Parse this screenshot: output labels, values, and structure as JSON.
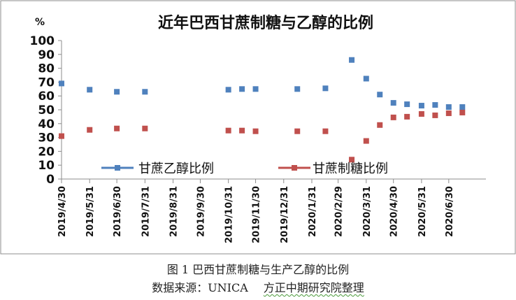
{
  "chart_data": {
    "type": "scatter",
    "title": "近年巴西甘蔗制糖与乙醇的比例",
    "ylabel": "%",
    "xlabel": "",
    "ylim": [
      0,
      100
    ],
    "yticks": [
      0,
      10,
      20,
      30,
      40,
      50,
      60,
      70,
      80,
      90,
      100
    ],
    "grid": false,
    "legend": "bottom-inside",
    "x_tick_labels": [
      "2019/4/30",
      "2019/5/31",
      "2019/6/30",
      "2019/7/31",
      "2019/8/31",
      "2019/9/30",
      "2019/10/31",
      "2019/11/30",
      "2019/12/31",
      "2020/1/31",
      "2020/2/29",
      "2020/3/31",
      "2020/4/30",
      "2020/5/31",
      "2020/6/30"
    ],
    "series": [
      {
        "name": "甘蔗乙醇比例",
        "color": "#4f81bd",
        "points": [
          {
            "x": "2019/4/30",
            "y": 69
          },
          {
            "x": "2019/5/31",
            "y": 64.5
          },
          {
            "x": "2019/6/30",
            "y": 63
          },
          {
            "x": "2019/7/31",
            "y": 63
          },
          {
            "x": "2019/10/31",
            "y": 64.5
          },
          {
            "x": "2019/11/15",
            "y": 65
          },
          {
            "x": "2019/11/30",
            "y": 65
          },
          {
            "x": "2020/1/15",
            "y": 65
          },
          {
            "x": "2020/2/15",
            "y": 65.5
          },
          {
            "x": "2020/3/15",
            "y": 86
          },
          {
            "x": "2020/3/31",
            "y": 72.5
          },
          {
            "x": "2020/4/15",
            "y": 61
          },
          {
            "x": "2020/4/30",
            "y": 55
          },
          {
            "x": "2020/5/15",
            "y": 54
          },
          {
            "x": "2020/5/31",
            "y": 53
          },
          {
            "x": "2020/6/15",
            "y": 53.5
          },
          {
            "x": "2020/6/30",
            "y": 52
          },
          {
            "x": "2020/7/15",
            "y": 52
          }
        ]
      },
      {
        "name": "甘蔗制糖比例",
        "color": "#c0504d",
        "points": [
          {
            "x": "2019/4/30",
            "y": 31
          },
          {
            "x": "2019/5/31",
            "y": 35.5
          },
          {
            "x": "2019/6/30",
            "y": 36.5
          },
          {
            "x": "2019/7/31",
            "y": 36.5
          },
          {
            "x": "2019/10/31",
            "y": 35
          },
          {
            "x": "2019/11/15",
            "y": 35
          },
          {
            "x": "2019/11/30",
            "y": 34.5
          },
          {
            "x": "2020/1/15",
            "y": 34.5
          },
          {
            "x": "2020/2/15",
            "y": 34.5
          },
          {
            "x": "2020/3/15",
            "y": 14
          },
          {
            "x": "2020/3/31",
            "y": 27.5
          },
          {
            "x": "2020/4/15",
            "y": 39
          },
          {
            "x": "2020/4/30",
            "y": 44.5
          },
          {
            "x": "2020/5/15",
            "y": 45
          },
          {
            "x": "2020/5/31",
            "y": 47
          },
          {
            "x": "2020/6/15",
            "y": 46
          },
          {
            "x": "2020/6/30",
            "y": 47.5
          },
          {
            "x": "2020/7/15",
            "y": 48
          }
        ]
      }
    ]
  },
  "caption": {
    "figure": "图 1  巴西甘蔗制糖与生产乙醇的比例",
    "source": "数据来源：UNICA",
    "org": "方正中期研究院整理"
  }
}
